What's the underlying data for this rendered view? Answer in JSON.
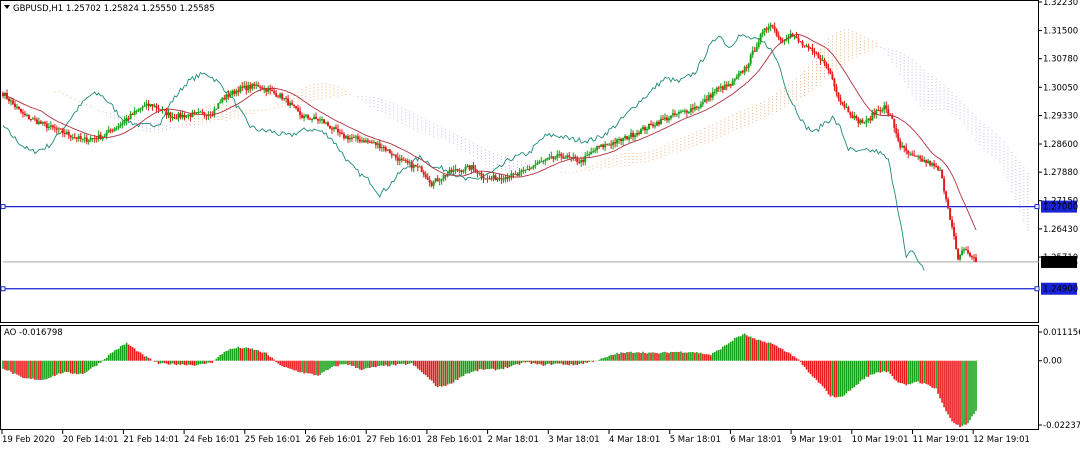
{
  "header": {
    "main_label": "GBPUSD,H1  1.25702 1.25824 1.25550 1.25585",
    "indicator_label": "AO -0.016798"
  },
  "colors": {
    "bull": "#17a017",
    "bear": "#e8191a",
    "level_line": "#1a24d6",
    "ma_line": "#b0313d",
    "chikou": "#1e8a7a",
    "cloud_a": "#f0b37e",
    "cloud_b": "#c9b7e6",
    "grid_text": "#000000",
    "tag_bg": "#000000"
  },
  "chart_data": [
    {
      "type": "candlestick",
      "title": "GBPUSD,H1",
      "quote": {
        "open": 1.25702,
        "high": 1.25824,
        "low": 1.2555,
        "close": 1.25585
      },
      "ylim": [
        1.2405,
        1.3223
      ],
      "y_ticks": [
        "1.32230",
        "1.31500",
        "1.30780",
        "1.30050",
        "1.29330",
        "1.28600",
        "1.27880",
        "1.27150",
        "1.26430",
        "1.25710"
      ],
      "x_ticks": [
        "19 Feb 2020",
        "20 Feb 14:01",
        "21 Feb 14:01",
        "24 Feb 16:01",
        "25 Feb 16:01",
        "26 Feb 16:01",
        "27 Feb 16:01",
        "28 Feb 16:01",
        "2 Mar 18:01",
        "3 Mar 18:01",
        "4 Mar 18:01",
        "5 Mar 18:01",
        "6 Mar 18:01",
        "9 Mar 19:01",
        "10 Mar 19:01",
        "11 Mar 19:01",
        "12 Mar 19:01"
      ],
      "horizontal_levels": [
        {
          "value": 1.27,
          "label": "1.27000"
        },
        {
          "value": 1.249,
          "label": "1.24900"
        }
      ],
      "current_price": {
        "value": 1.25585,
        "label": "1.25585"
      },
      "price_path": [
        [
          0,
          1.299
        ],
        [
          10,
          1.2935
        ],
        [
          20,
          1.291
        ],
        [
          30,
          1.289
        ],
        [
          40,
          1.287
        ],
        [
          50,
          1.288
        ],
        [
          60,
          1.2915
        ],
        [
          70,
          1.2955
        ],
        [
          75,
          1.296
        ],
        [
          85,
          1.293
        ],
        [
          95,
          1.2935
        ],
        [
          105,
          1.294
        ],
        [
          110,
          1.2975
        ],
        [
          118,
          1.3
        ],
        [
          128,
          1.301
        ],
        [
          140,
          1.298
        ],
        [
          150,
          1.293
        ],
        [
          160,
          1.292
        ],
        [
          170,
          1.288
        ],
        [
          180,
          1.287
        ],
        [
          190,
          1.2855
        ],
        [
          200,
          1.2815
        ],
        [
          210,
          1.2795
        ],
        [
          215,
          1.276
        ],
        [
          225,
          1.279
        ],
        [
          235,
          1.28
        ],
        [
          243,
          1.277
        ],
        [
          248,
          1.2775
        ],
        [
          258,
          1.278
        ],
        [
          268,
          1.281
        ],
        [
          280,
          1.283
        ],
        [
          290,
          1.2815
        ],
        [
          298,
          1.285
        ],
        [
          310,
          1.287
        ],
        [
          320,
          1.2895
        ],
        [
          330,
          1.292
        ],
        [
          340,
          1.294
        ],
        [
          350,
          1.296
        ],
        [
          358,
          1.3
        ],
        [
          365,
          1.301
        ],
        [
          373,
          1.306
        ],
        [
          380,
          1.3135
        ],
        [
          385,
          1.317
        ],
        [
          390,
          1.3125
        ],
        [
          395,
          1.314
        ],
        [
          403,
          1.3105
        ],
        [
          410,
          1.308
        ],
        [
          415,
          1.304
        ],
        [
          420,
          1.297
        ],
        [
          425,
          1.294
        ],
        [
          428,
          1.292
        ],
        [
          433,
          1.2915
        ],
        [
          438,
          1.2945
        ],
        [
          442,
          1.2955
        ],
        [
          446,
          1.292
        ],
        [
          450,
          1.2855
        ],
        [
          455,
          1.283
        ],
        [
          460,
          1.282
        ],
        [
          465,
          1.281
        ],
        [
          470,
          1.279
        ],
        [
          474,
          1.27
        ],
        [
          477,
          1.262
        ],
        [
          479,
          1.256
        ],
        [
          482,
          1.2595
        ],
        [
          485,
          1.2575
        ],
        [
          488,
          1.256
        ]
      ]
    },
    {
      "type": "bar",
      "title": "AO",
      "value": -0.016798,
      "ylim": [
        -0.0232,
        0.0118
      ],
      "y_ticks": [
        {
          "value": 0.011156,
          "label": "0.011156"
        },
        {
          "value": 0,
          "label": "0.00"
        },
        {
          "value": -0.022371,
          "label": "-0.022371"
        }
      ],
      "wave": [
        [
          0,
          -0.0025
        ],
        [
          10,
          -0.006
        ],
        [
          20,
          -0.0065
        ],
        [
          30,
          -0.004
        ],
        [
          40,
          -0.0045
        ],
        [
          48,
          -0.001
        ],
        [
          55,
          0.003
        ],
        [
          62,
          0.006
        ],
        [
          70,
          0.002
        ],
        [
          78,
          -0.001
        ],
        [
          88,
          -0.0012
        ],
        [
          98,
          -0.0015
        ],
        [
          105,
          -0.0005
        ],
        [
          112,
          0.0035
        ],
        [
          118,
          0.0045
        ],
        [
          125,
          0.004
        ],
        [
          132,
          0.0025
        ],
        [
          140,
          -0.002
        ],
        [
          150,
          -0.004
        ],
        [
          158,
          -0.005
        ],
        [
          166,
          -0.002
        ],
        [
          172,
          -0.001
        ],
        [
          180,
          -0.003
        ],
        [
          188,
          -0.002
        ],
        [
          196,
          -0.0015
        ],
        [
          205,
          -0.001
        ],
        [
          212,
          -0.005
        ],
        [
          218,
          -0.009
        ],
        [
          224,
          -0.008
        ],
        [
          232,
          -0.0045
        ],
        [
          240,
          -0.003
        ],
        [
          248,
          -0.003
        ],
        [
          255,
          -0.002
        ],
        [
          262,
          -0.0005
        ],
        [
          270,
          -0.0015
        ],
        [
          278,
          -0.001
        ],
        [
          286,
          -0.0015
        ],
        [
          294,
          -0.0005
        ],
        [
          300,
          0.0005
        ],
        [
          308,
          0.0025
        ],
        [
          318,
          0.003
        ],
        [
          328,
          0.0025
        ],
        [
          336,
          0.003
        ],
        [
          346,
          0.003
        ],
        [
          355,
          0.002
        ],
        [
          362,
          0.005
        ],
        [
          368,
          0.008
        ],
        [
          372,
          0.009
        ],
        [
          378,
          0.007
        ],
        [
          385,
          0.006
        ],
        [
          392,
          0.0035
        ],
        [
          398,
          0.001
        ],
        [
          404,
          -0.004
        ],
        [
          410,
          -0.008
        ],
        [
          415,
          -0.012
        ],
        [
          420,
          -0.0125
        ],
        [
          426,
          -0.0095
        ],
        [
          432,
          -0.006
        ],
        [
          438,
          -0.004
        ],
        [
          444,
          -0.0035
        ],
        [
          448,
          -0.007
        ],
        [
          453,
          -0.0085
        ],
        [
          458,
          -0.007
        ],
        [
          463,
          -0.008
        ],
        [
          468,
          -0.0095
        ],
        [
          472,
          -0.016
        ],
        [
          476,
          -0.0205
        ],
        [
          480,
          -0.0225
        ],
        [
          484,
          -0.0215
        ],
        [
          488,
          -0.0168
        ]
      ]
    }
  ]
}
